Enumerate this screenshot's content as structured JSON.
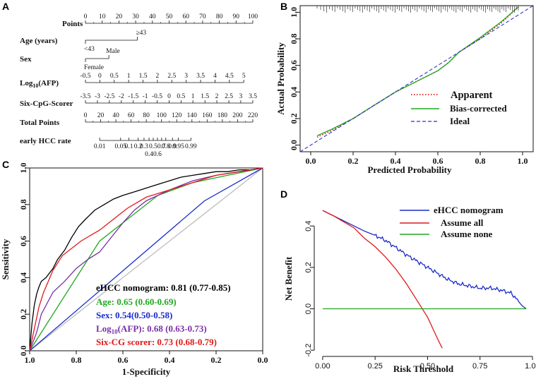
{
  "panels": {
    "a": "A",
    "b": "B",
    "c": "C",
    "d": "D"
  },
  "chart_data": [
    {
      "panel": "A",
      "type": "table",
      "title": "Nomogram",
      "rows": [
        {
          "label": "Points",
          "ticks": [
            "0",
            "10",
            "20",
            "30",
            "40",
            "50",
            "60",
            "70",
            "80",
            "90",
            "100"
          ],
          "tick_points": [
            0,
            10,
            20,
            30,
            40,
            50,
            60,
            70,
            80,
            90,
            100
          ]
        },
        {
          "label": "Age (years)",
          "levels": [
            "<43",
            "≥43"
          ],
          "level_points": [
            0,
            31
          ]
        },
        {
          "label": "Sex",
          "levels": [
            "Female",
            "Male"
          ],
          "level_points": [
            0,
            14
          ]
        },
        {
          "label": "Log",
          "label_sub": "10",
          "label_rest": "(AFP)",
          "ticks": [
            "-0.5",
            "0",
            "0.5",
            "1",
            "1.5",
            "2",
            "2.5",
            "3",
            "3.5",
            "4",
            "4.5",
            "5"
          ],
          "tick_points": [
            0,
            8.6,
            17.2,
            25.8,
            34.4,
            43,
            51.6,
            60.2,
            68.8,
            77.4,
            86,
            94.6
          ]
        },
        {
          "label": "Six-CpG-Scorer",
          "ticks": [
            "-3.5",
            "-3",
            "-2.5",
            "-2",
            "-1.5",
            "-1",
            "-0.5",
            "0",
            "0.5",
            "1",
            "1.5",
            "2",
            "2.5",
            "3",
            "3.5"
          ],
          "tick_points": [
            0,
            7.14,
            14.28,
            21.42,
            28.56,
            35.7,
            42.84,
            50,
            57.1,
            64.2,
            71.4,
            78.5,
            85.7,
            92.8,
            100
          ]
        },
        {
          "label": "Total Points",
          "ticks": [
            "0",
            "20",
            "40",
            "60",
            "80",
            "100",
            "120",
            "140",
            "160",
            "180",
            "200",
            "220"
          ],
          "tick_points": [
            0,
            9.09,
            18.18,
            27.27,
            36.36,
            45.45,
            54.54,
            63.63,
            72.72,
            81.81,
            90.9,
            100
          ]
        },
        {
          "label": "early HCC rate",
          "ticks_top": [
            "0.01",
            "0.05",
            "0.1",
            "0.2",
            "0.3",
            "0.5",
            "0.7",
            "0.8",
            "0.9",
            "0.95",
            "0.99"
          ],
          "ticks_top_points": [
            8.5,
            21,
            26,
            31.5,
            35,
            40.5,
            45.5,
            48,
            52,
            55.5,
            63
          ],
          "ticks_bottom": [
            "0.4",
            "0.6"
          ],
          "ticks_bottom_points": [
            38,
            43
          ]
        }
      ]
    },
    {
      "panel": "B",
      "type": "line",
      "xlabel": "Predicted Probability",
      "ylabel": "Actual Probability",
      "xlim": [
        -0.05,
        1.05
      ],
      "ylim": [
        -0.05,
        1.05
      ],
      "xticks": [
        "0.0",
        "0.2",
        "0.4",
        "0.6",
        "0.8",
        "1.0"
      ],
      "yticks": [
        "0.0",
        "0.2",
        "0.4",
        "0.6",
        "0.8",
        "1.0"
      ],
      "series": [
        {
          "name": "Apparent",
          "color": "#e0191b",
          "style": "dotted",
          "x": [
            0.03,
            0.1,
            0.2,
            0.3,
            0.4,
            0.5,
            0.6,
            0.65,
            0.7,
            0.8,
            0.9,
            0.98
          ],
          "y": [
            0.06,
            0.11,
            0.2,
            0.3,
            0.4,
            0.48,
            0.56,
            0.62,
            0.7,
            0.8,
            0.92,
            1.04
          ]
        },
        {
          "name": "Bias-corrected",
          "color": "#1fa81f",
          "style": "solid",
          "x": [
            0.03,
            0.1,
            0.2,
            0.3,
            0.4,
            0.5,
            0.6,
            0.65,
            0.7,
            0.8,
            0.9,
            0.98
          ],
          "y": [
            0.07,
            0.12,
            0.2,
            0.3,
            0.4,
            0.48,
            0.56,
            0.62,
            0.7,
            0.81,
            0.93,
            1.04
          ]
        },
        {
          "name": "Ideal",
          "color": "#2a35c9",
          "style": "dashed",
          "x": [
            -0.05,
            1.05
          ],
          "y": [
            -0.05,
            1.05
          ]
        }
      ]
    },
    {
      "panel": "C",
      "type": "line",
      "xlabel": "1-Specificity",
      "ylabel": "Sensitivity",
      "xlim": [
        1.0,
        0.0
      ],
      "ylim": [
        0.0,
        1.0
      ],
      "xticks": [
        "1.0",
        "0.8",
        "0.6",
        "0.4",
        "0.2",
        "0.0"
      ],
      "yticks": [
        "0.0",
        "0.2",
        "0.4",
        "0.6",
        "0.8",
        "1.0"
      ],
      "series": [
        {
          "name": "eHCC nomogram",
          "auc": "0.81 (0.77-0.85)",
          "color": "#000000",
          "x": [
            1.0,
            0.99,
            0.98,
            0.97,
            0.96,
            0.95,
            0.93,
            0.9,
            0.88,
            0.85,
            0.82,
            0.79,
            0.76,
            0.72,
            0.68,
            0.64,
            0.6,
            0.55,
            0.5,
            0.45,
            0.4,
            0.35,
            0.3,
            0.25,
            0.2,
            0.15,
            0.1,
            0.05,
            0.0
          ],
          "y": [
            0.0,
            0.15,
            0.25,
            0.31,
            0.35,
            0.38,
            0.4,
            0.45,
            0.5,
            0.55,
            0.62,
            0.68,
            0.72,
            0.77,
            0.8,
            0.83,
            0.85,
            0.87,
            0.89,
            0.91,
            0.93,
            0.95,
            0.96,
            0.97,
            0.98,
            0.98,
            0.99,
            0.99,
            1.0
          ]
        },
        {
          "name": "Age",
          "auc": "0.65 (0.60-0.69)",
          "color": "#1fa81f",
          "x": [
            1.0,
            0.7,
            0.45,
            0.3,
            0.0
          ],
          "y": [
            0.0,
            0.6,
            0.85,
            0.92,
            1.0
          ]
        },
        {
          "name": "Sex",
          "auc": "0.54(0.50-0.58)",
          "color": "#1a2bc9",
          "x": [
            1.0,
            0.25,
            0.0
          ],
          "y": [
            0.0,
            0.82,
            1.0
          ]
        },
        {
          "name": "Log10(AFP)",
          "auc": "0.68 (0.63-0.73)",
          "color": "#7a2fa8",
          "x": [
            1.0,
            0.97,
            0.95,
            0.9,
            0.85,
            0.8,
            0.75,
            0.7,
            0.65,
            0.6,
            0.55,
            0.5,
            0.45,
            0.4,
            0.3,
            0.2,
            0.1,
            0.0
          ],
          "y": [
            0.0,
            0.1,
            0.2,
            0.32,
            0.38,
            0.45,
            0.5,
            0.54,
            0.62,
            0.7,
            0.77,
            0.82,
            0.85,
            0.88,
            0.93,
            0.96,
            0.98,
            1.0
          ]
        },
        {
          "name": "Six-CG scorer",
          "auc": "0.73 (0.68-0.79)",
          "color": "#e0191b",
          "x": [
            1.0,
            0.98,
            0.96,
            0.94,
            0.92,
            0.9,
            0.86,
            0.82,
            0.78,
            0.74,
            0.7,
            0.66,
            0.62,
            0.58,
            0.54,
            0.5,
            0.45,
            0.4,
            0.35,
            0.3,
            0.25,
            0.2,
            0.15,
            0.1,
            0.05,
            0.0
          ],
          "y": [
            0.0,
            0.12,
            0.24,
            0.32,
            0.38,
            0.44,
            0.52,
            0.56,
            0.6,
            0.63,
            0.66,
            0.7,
            0.74,
            0.78,
            0.81,
            0.84,
            0.86,
            0.88,
            0.9,
            0.92,
            0.94,
            0.96,
            0.97,
            0.98,
            0.99,
            1.0
          ]
        },
        {
          "name": "reference",
          "color": "#bdbdbd",
          "x": [
            1.0,
            0.0
          ],
          "y": [
            0.0,
            1.0
          ]
        }
      ]
    },
    {
      "panel": "D",
      "type": "line",
      "xlabel": "Risk Threshold",
      "ylabel": "Net Benefit",
      "xlim": [
        -0.04,
        1.0
      ],
      "ylim": [
        -0.23,
        0.52
      ],
      "xticks": [
        "0.00",
        "0.25",
        "0.50",
        "0.75",
        "1.00"
      ],
      "yticks": [
        "-0.2",
        "0.0",
        "0.2",
        "0.4"
      ],
      "series": [
        {
          "name": "eHCC nomogram",
          "color": "#1a2bc9",
          "x": [
            0.0,
            0.05,
            0.1,
            0.15,
            0.2,
            0.25,
            0.3,
            0.35,
            0.4,
            0.45,
            0.5,
            0.55,
            0.6,
            0.65,
            0.7,
            0.75,
            0.8,
            0.85,
            0.9,
            0.93,
            0.95,
            0.97
          ],
          "y": [
            0.475,
            0.45,
            0.425,
            0.4,
            0.375,
            0.355,
            0.33,
            0.295,
            0.26,
            0.23,
            0.2,
            0.17,
            0.14,
            0.12,
            0.11,
            0.1,
            0.1,
            0.09,
            0.075,
            0.04,
            0.015,
            0.0
          ]
        },
        {
          "name": "Assume all",
          "color": "#e0191b",
          "x": [
            0.0,
            0.05,
            0.1,
            0.15,
            0.2,
            0.25,
            0.3,
            0.35,
            0.4,
            0.45,
            0.5,
            0.55,
            0.57
          ],
          "y": [
            0.475,
            0.45,
            0.42,
            0.39,
            0.34,
            0.3,
            0.25,
            0.19,
            0.12,
            0.04,
            -0.04,
            -0.15,
            -0.19
          ]
        },
        {
          "name": "Assume none",
          "color": "#1fa81f",
          "x": [
            0.0,
            0.97
          ],
          "y": [
            0.0,
            0.0
          ]
        }
      ]
    }
  ]
}
